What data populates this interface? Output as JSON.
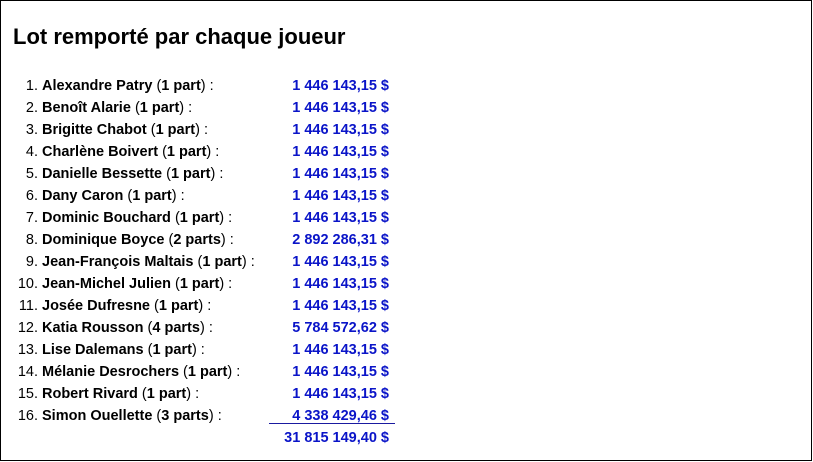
{
  "title": "Lot remporté par chaque joueur",
  "accent_color": "#0a14c8",
  "players": [
    {
      "num": "1.",
      "name": "Alexandre Patry",
      "parts": "1 part",
      "amount": "1 446 143,15 $"
    },
    {
      "num": "2.",
      "name": "Benoît Alarie",
      "parts": "1 part",
      "amount": "1 446 143,15 $"
    },
    {
      "num": "3.",
      "name": "Brigitte Chabot",
      "parts": "1 part",
      "amount": "1 446 143,15 $"
    },
    {
      "num": "4.",
      "name": "Charlène Boivert",
      "parts": "1 part",
      "amount": "1 446 143,15 $"
    },
    {
      "num": "5.",
      "name": "Danielle Bessette",
      "parts": "1 part",
      "amount": "1 446 143,15 $"
    },
    {
      "num": "6.",
      "name": "Dany Caron",
      "parts": "1 part",
      "amount": "1 446 143,15 $"
    },
    {
      "num": "7.",
      "name": "Dominic Bouchard",
      "parts": "1 part",
      "amount": "1 446 143,15 $"
    },
    {
      "num": "8.",
      "name": "Dominique Boyce",
      "parts": "2 parts",
      "amount": "2 892 286,31 $"
    },
    {
      "num": "9.",
      "name": "Jean-François Maltais",
      "parts": "1 part",
      "amount": "1 446 143,15 $"
    },
    {
      "num": "10.",
      "name": "Jean-Michel Julien",
      "parts": "1 part",
      "amount": "1 446 143,15 $"
    },
    {
      "num": "11.",
      "name": "Josée Dufresne",
      "parts": "1 part",
      "amount": "1 446 143,15 $"
    },
    {
      "num": "12.",
      "name": "Katia Rousson",
      "parts": "4 parts",
      "amount": "5 784 572,62 $"
    },
    {
      "num": "13.",
      "name": "Lise Dalemans",
      "parts": "1 part",
      "amount": "1 446 143,15 $"
    },
    {
      "num": "14.",
      "name": "Mélanie Desrochers",
      "parts": "1 part",
      "amount": "1 446 143,15 $"
    },
    {
      "num": "15.",
      "name": "Robert Rivard",
      "parts": "1 part",
      "amount": "1 446 143,15 $"
    },
    {
      "num": "16.",
      "name": "Simon Ouellette",
      "parts": "3 parts",
      "amount": "4 338 429,46 $"
    }
  ],
  "total": "31 815 149,40 $"
}
